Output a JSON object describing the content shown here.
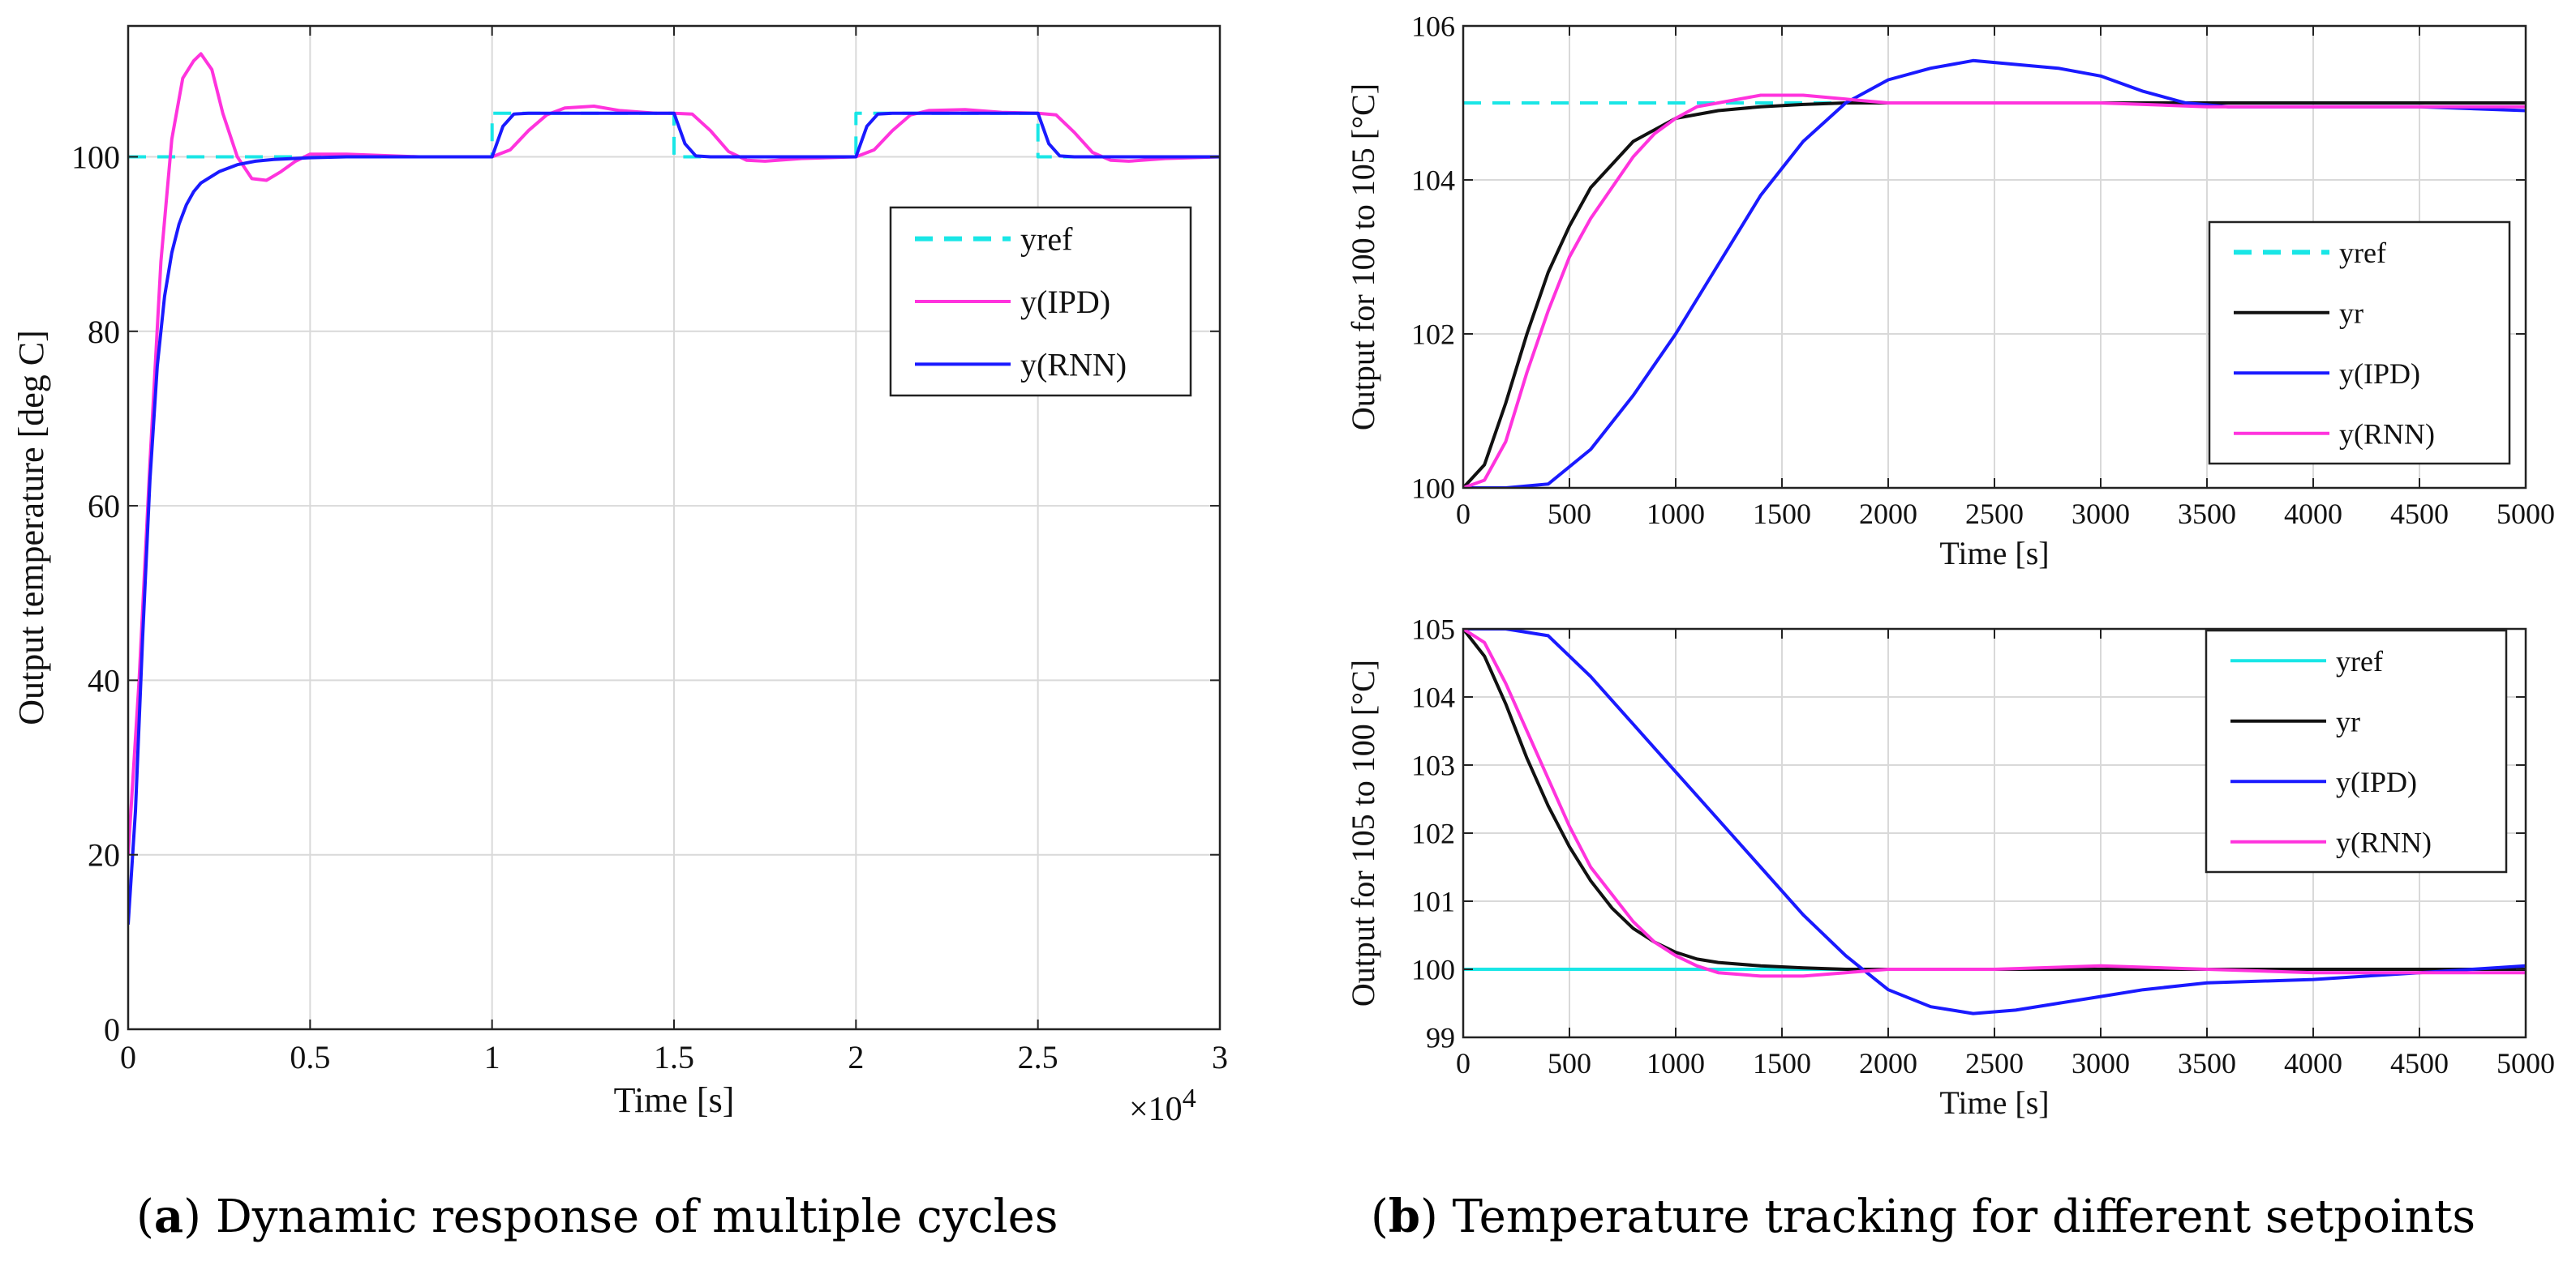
{
  "colors": {
    "yref": "#19e6e6",
    "yr": "#111111",
    "ipd_a": "#ff33dd",
    "rnn_a": "#1a1aff",
    "ipd_b": "#1a1aff",
    "rnn_b": "#ff33dd",
    "grid": "#d9d9d9"
  },
  "captions": {
    "a_letter": "a",
    "a_text": "Dynamic response of multiple cycles",
    "b_letter": "b",
    "b_text": "Temperature tracking for different setpoints"
  },
  "chart_data": [
    {
      "id": "a",
      "type": "line",
      "title": "",
      "xlabel": "Time [s]",
      "ylabel": "Output temperature [deg C]",
      "x_multiplier_label": "×10",
      "x_multiplier_exp": "4",
      "xlim": [
        0,
        3
      ],
      "ylim": [
        0,
        115
      ],
      "xticks": [
        0,
        0.5,
        1,
        1.5,
        2,
        2.5,
        3
      ],
      "xtick_labels": [
        "0",
        "0.5",
        "1",
        "1.5",
        "2",
        "2.5",
        "3"
      ],
      "yticks": [
        0,
        20,
        40,
        60,
        80,
        100
      ],
      "ytick_labels": [
        "0",
        "20",
        "40",
        "60",
        "80",
        "100"
      ],
      "grid": true,
      "legend_position": "upper-right",
      "series": [
        {
          "name": "yref",
          "style": "dashed",
          "color_key": "yref",
          "x": [
            0,
            1,
            1,
            1.5,
            1.5,
            2,
            2,
            2.5,
            2.5,
            3
          ],
          "y": [
            100,
            100,
            105,
            105,
            100,
            100,
            105,
            105,
            100,
            100
          ]
        },
        {
          "name": "y(IPD)",
          "style": "solid",
          "color_key": "ipd_a",
          "x": [
            0,
            0.03,
            0.06,
            0.09,
            0.12,
            0.15,
            0.18,
            0.2,
            0.23,
            0.26,
            0.3,
            0.34,
            0.38,
            0.42,
            0.46,
            0.5,
            0.6,
            0.8,
            1.0,
            1.05,
            1.1,
            1.15,
            1.2,
            1.28,
            1.35,
            1.45,
            1.5,
            1.55,
            1.6,
            1.65,
            1.7,
            1.75,
            1.85,
            2.0,
            2.05,
            2.1,
            2.15,
            2.2,
            2.3,
            2.4,
            2.5,
            2.55,
            2.6,
            2.65,
            2.7,
            2.75,
            2.85,
            3.0
          ],
          "y": [
            20,
            40,
            65,
            88,
            102,
            109,
            111,
            111.8,
            110,
            105,
            100,
            97.5,
            97.3,
            98.3,
            99.5,
            100.3,
            100.3,
            100,
            100,
            100.8,
            103,
            104.8,
            105.6,
            105.8,
            105.3,
            105,
            105,
            104.9,
            103,
            100.6,
            99.6,
            99.5,
            99.8,
            100,
            100.8,
            103,
            104.8,
            105.3,
            105.4,
            105.1,
            105,
            104.8,
            102.8,
            100.5,
            99.6,
            99.5,
            99.8,
            100
          ]
        },
        {
          "name": "y(RNN)",
          "style": "solid",
          "color_key": "rnn_a",
          "x": [
            0,
            0.02,
            0.04,
            0.06,
            0.08,
            0.1,
            0.12,
            0.14,
            0.16,
            0.18,
            0.2,
            0.25,
            0.3,
            0.35,
            0.4,
            0.5,
            0.6,
            1.0,
            1.03,
            1.06,
            1.1,
            1.5,
            1.53,
            1.56,
            1.6,
            2.0,
            2.03,
            2.06,
            2.1,
            2.5,
            2.53,
            2.56,
            2.6,
            3.0
          ],
          "y": [
            12,
            25,
            45,
            63,
            76,
            84,
            89,
            92.3,
            94.5,
            96,
            97,
            98.3,
            99.1,
            99.5,
            99.7,
            99.9,
            100,
            100,
            103.5,
            104.9,
            105,
            105,
            101.5,
            100.1,
            100,
            100,
            103.5,
            104.9,
            105,
            105,
            101.5,
            100.1,
            100,
            100
          ]
        }
      ]
    },
    {
      "id": "b1",
      "type": "line",
      "title": "",
      "xlabel": "Time [s]",
      "ylabel": "Output for 100 to 105 [°C]",
      "xlim": [
        0,
        5000
      ],
      "ylim": [
        100,
        106
      ],
      "xticks": [
        0,
        500,
        1000,
        1500,
        2000,
        2500,
        3000,
        3500,
        4000,
        4500,
        5000
      ],
      "xtick_labels": [
        "0",
        "500",
        "1000",
        "1500",
        "2000",
        "2500",
        "3000",
        "3500",
        "4000",
        "4500",
        "5000"
      ],
      "yticks": [
        100,
        102,
        104,
        106
      ],
      "ytick_labels": [
        "100",
        "102",
        "104",
        "106"
      ],
      "grid": true,
      "legend_position": "right",
      "series": [
        {
          "name": "yref",
          "style": "dashed",
          "color_key": "yref",
          "x": [
            0,
            5000
          ],
          "y": [
            105,
            105
          ]
        },
        {
          "name": "yr",
          "style": "solid",
          "color_key": "yr",
          "x": [
            0,
            100,
            200,
            300,
            400,
            500,
            600,
            700,
            800,
            900,
            1000,
            1200,
            1400,
            1600,
            1800,
            2000,
            2500,
            5000
          ],
          "y": [
            100,
            100.3,
            101.1,
            102,
            102.8,
            103.4,
            103.9,
            104.2,
            104.5,
            104.65,
            104.8,
            104.9,
            104.95,
            104.98,
            105,
            105,
            105,
            105
          ]
        },
        {
          "name": "y(IPD)",
          "style": "solid",
          "color_key": "ipd_b",
          "x": [
            0,
            200,
            400,
            600,
            800,
            1000,
            1200,
            1400,
            1600,
            1800,
            2000,
            2200,
            2400,
            2600,
            2800,
            3000,
            3200,
            3400,
            3600,
            4000,
            4500,
            5000
          ],
          "y": [
            100,
            100,
            100.05,
            100.5,
            101.2,
            102,
            102.9,
            103.8,
            104.5,
            105,
            105.3,
            105.45,
            105.55,
            105.5,
            105.45,
            105.35,
            105.15,
            105,
            104.95,
            104.95,
            104.95,
            104.9
          ]
        },
        {
          "name": "y(RNN)",
          "style": "solid",
          "color_key": "rnn_b",
          "x": [
            0,
            100,
            200,
            300,
            400,
            500,
            600,
            700,
            800,
            900,
            1000,
            1100,
            1200,
            1400,
            1600,
            1800,
            2000,
            2500,
            3000,
            3500,
            4000,
            4500,
            5000
          ],
          "y": [
            100,
            100.1,
            100.6,
            101.5,
            102.3,
            103,
            103.5,
            103.9,
            104.3,
            104.6,
            104.8,
            104.95,
            105,
            105.1,
            105.1,
            105.05,
            105,
            105,
            105,
            104.95,
            104.95,
            104.95,
            104.95
          ]
        }
      ]
    },
    {
      "id": "b2",
      "type": "line",
      "title": "",
      "xlabel": "Time [s]",
      "ylabel": "Output for 105 to 100 [°C]",
      "xlim": [
        0,
        5000
      ],
      "ylim": [
        99,
        105
      ],
      "xticks": [
        0,
        500,
        1000,
        1500,
        2000,
        2500,
        3000,
        3500,
        4000,
        4500,
        5000
      ],
      "xtick_labels": [
        "0",
        "500",
        "1000",
        "1500",
        "2000",
        "2500",
        "3000",
        "3500",
        "4000",
        "4500",
        "5000"
      ],
      "yticks": [
        99,
        100,
        101,
        102,
        103,
        104,
        105
      ],
      "ytick_labels": [
        "99",
        "100",
        "101",
        "102",
        "103",
        "104",
        "105"
      ],
      "grid": true,
      "legend_position": "upper-right",
      "series": [
        {
          "name": "yref",
          "style": "solid",
          "color_key": "yref",
          "x": [
            0,
            5000
          ],
          "y": [
            100,
            100
          ]
        },
        {
          "name": "yr",
          "style": "solid",
          "color_key": "yr",
          "x": [
            0,
            100,
            200,
            300,
            400,
            500,
            600,
            700,
            800,
            900,
            1000,
            1100,
            1200,
            1400,
            1600,
            1800,
            2000,
            5000
          ],
          "y": [
            105,
            104.6,
            103.9,
            103.1,
            102.4,
            101.8,
            101.3,
            100.9,
            100.6,
            100.4,
            100.25,
            100.15,
            100.1,
            100.05,
            100.02,
            100,
            100,
            100
          ]
        },
        {
          "name": "y(IPD)",
          "style": "solid",
          "color_key": "ipd_b",
          "x": [
            0,
            200,
            400,
            600,
            800,
            1000,
            1200,
            1400,
            1600,
            1800,
            2000,
            2200,
            2400,
            2600,
            2800,
            3000,
            3200,
            3500,
            4000,
            4500,
            5000
          ],
          "y": [
            105,
            105,
            104.9,
            104.3,
            103.6,
            102.9,
            102.2,
            101.5,
            100.8,
            100.2,
            99.7,
            99.45,
            99.35,
            99.4,
            99.5,
            99.6,
            99.7,
            99.8,
            99.85,
            99.95,
            100.05
          ]
        },
        {
          "name": "y(RNN)",
          "style": "solid",
          "color_key": "rnn_b",
          "x": [
            0,
            100,
            200,
            300,
            400,
            500,
            600,
            700,
            800,
            900,
            1000,
            1100,
            1200,
            1400,
            1600,
            1800,
            2000,
            2500,
            3000,
            3500,
            4000,
            4500,
            5000
          ],
          "y": [
            105,
            104.8,
            104.2,
            103.5,
            102.8,
            102.1,
            101.5,
            101.1,
            100.7,
            100.4,
            100.2,
            100.05,
            99.95,
            99.9,
            99.9,
            99.95,
            100,
            100,
            100.05,
            100,
            99.95,
            99.95,
            99.95
          ]
        }
      ]
    }
  ]
}
